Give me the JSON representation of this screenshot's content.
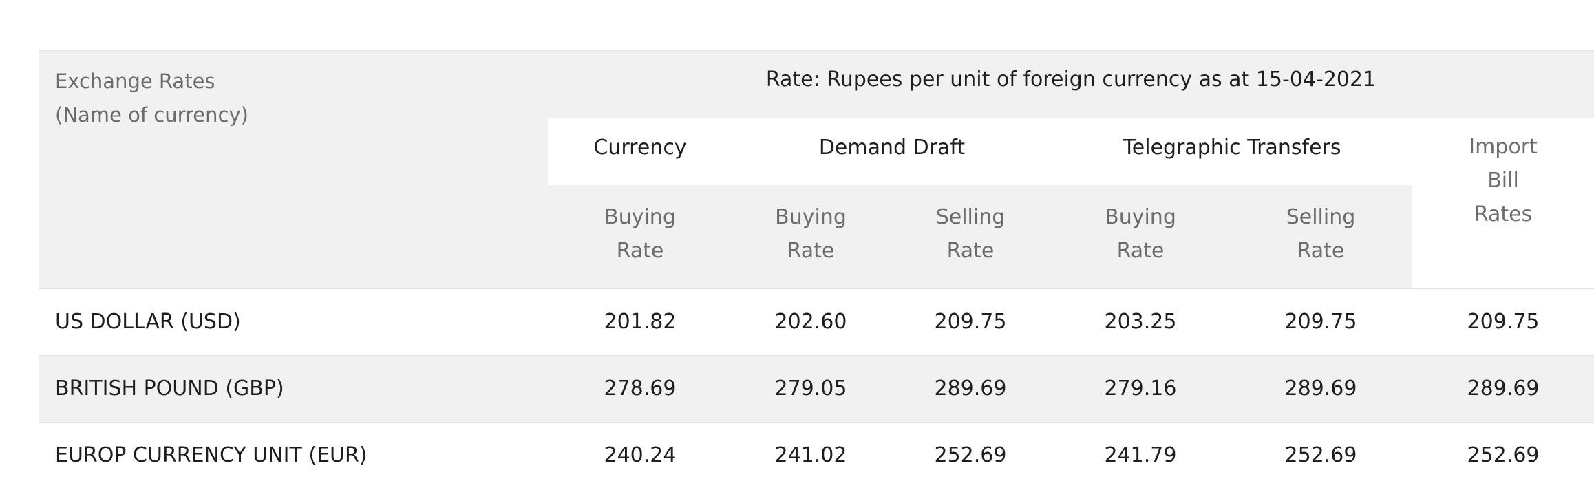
{
  "table": {
    "header": {
      "name_line1": "Exchange Rates",
      "name_line2": "(Name of currency)",
      "rate_caption": "Rate: Rupees per unit of foreign currency as at 15-04-2021",
      "currency_group": "Currency",
      "demand_draft_group": "Demand Draft",
      "telegraphic_group": "Telegraphic Transfers",
      "import_line1": "Import",
      "import_line2": "Bill",
      "import_line3": "Rates",
      "buying_line1": "Buying",
      "selling_line1": "Selling",
      "rate_line2": "Rate"
    },
    "rows": [
      {
        "name": "US DOLLAR (USD)",
        "currency_buying": "201.82",
        "dd_buying": "202.60",
        "dd_selling": "209.75",
        "tt_buying": "203.25",
        "tt_selling": "209.75",
        "import_bill": "209.75"
      },
      {
        "name": "BRITISH POUND (GBP)",
        "currency_buying": "278.69",
        "dd_buying": "279.05",
        "dd_selling": "289.69",
        "tt_buying": "279.16",
        "tt_selling": "289.69",
        "import_bill": "289.69"
      },
      {
        "name": "EUROP CURRENCY UNIT (EUR)",
        "currency_buying": "240.24",
        "dd_buying": "241.02",
        "dd_selling": "252.69",
        "tt_buying": "241.79",
        "tt_selling": "252.69",
        "import_bill": "252.69"
      }
    ]
  },
  "colors": {
    "header_background": "#f1f1f1",
    "row_stripe": "#f1f1f1",
    "text_primary": "#1e1e1e",
    "text_muted": "#6c6c6c"
  }
}
